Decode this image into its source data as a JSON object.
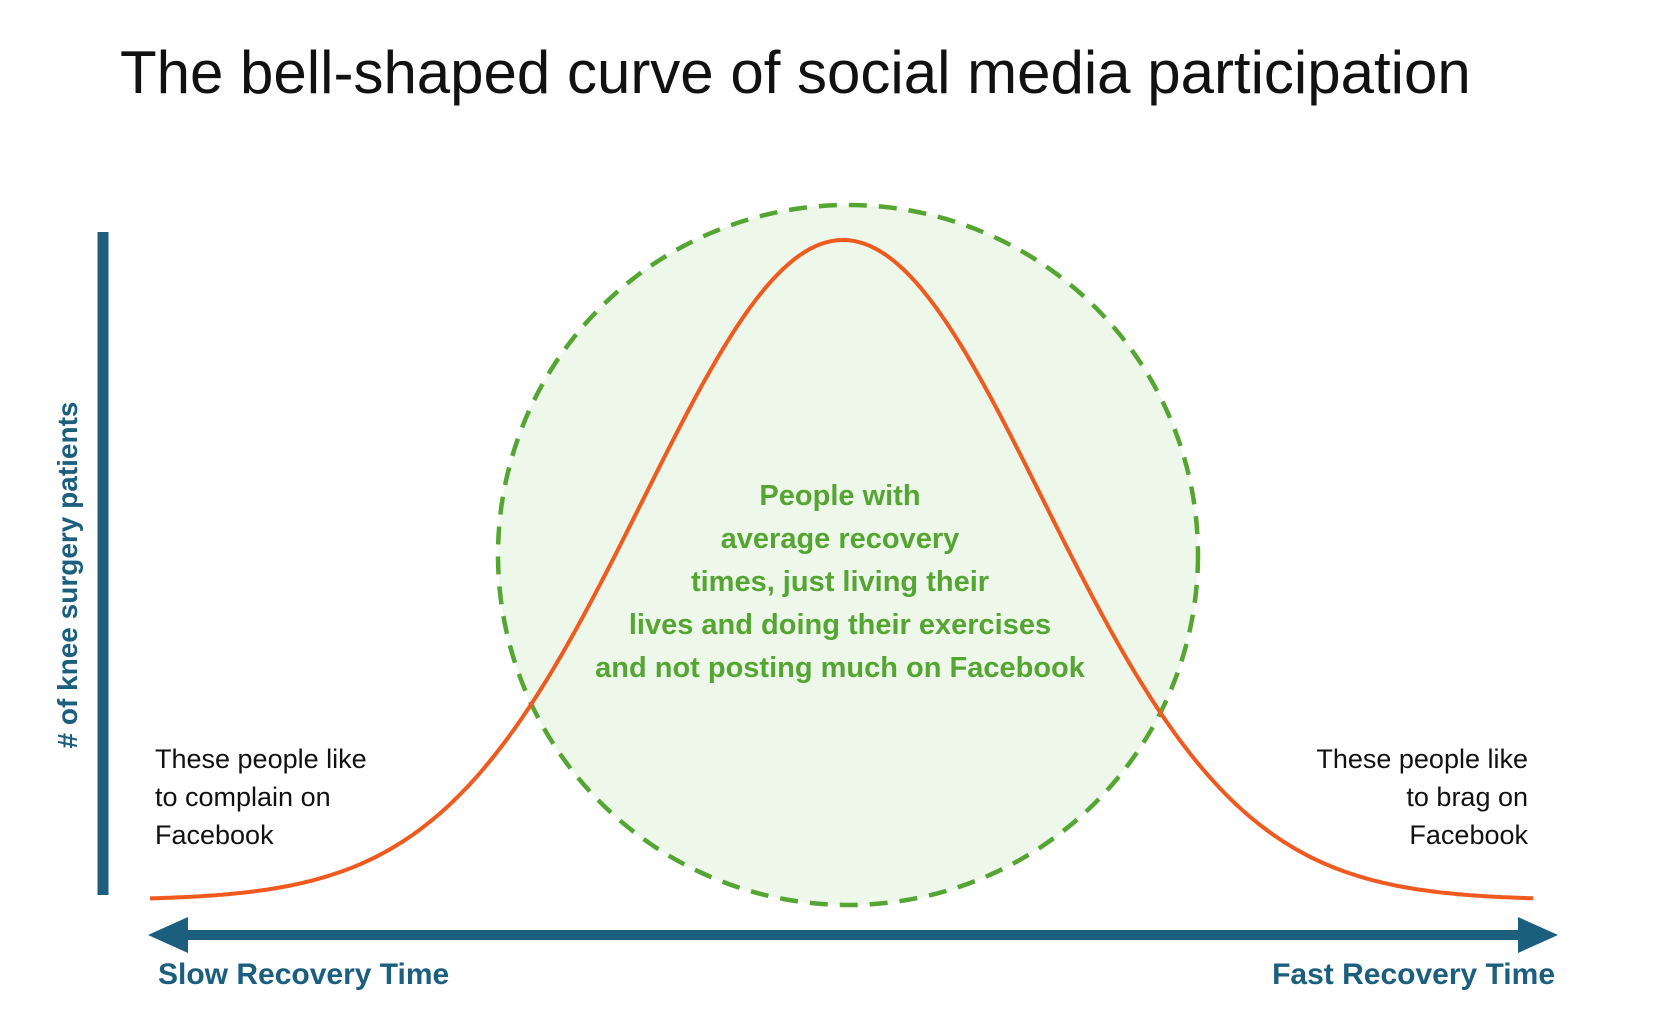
{
  "title": "The bell-shaped curve of social media participation",
  "y_axis_label": "# of knee surgery patients",
  "x_axis": {
    "left_label": "Slow Recovery Time",
    "right_label": "Fast Recovery Time"
  },
  "center_annotation": {
    "lines": [
      "People with",
      "average recovery",
      "times, just living their",
      "lives and doing their exercises",
      "and not posting much on Facebook"
    ]
  },
  "left_annotation": {
    "lines": [
      "These people like",
      "to complain on",
      "Facebook"
    ]
  },
  "right_annotation": {
    "lines": [
      "These people like",
      "to brag on",
      "Facebook"
    ]
  },
  "colors": {
    "curve": "#f05a1e",
    "axis": "#1b5e7e",
    "circle_stroke": "#55a533",
    "circle_fill": "#eef8ea",
    "center_text": "#55a533"
  }
}
